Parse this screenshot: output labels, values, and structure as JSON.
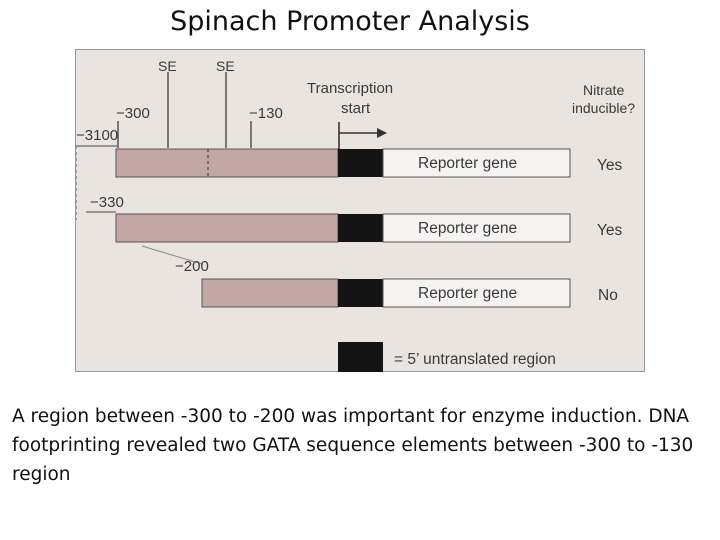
{
  "slide": {
    "title": "Spinach Promoter Analysis",
    "caption": "A region between -300 to -200 was important for enzyme induction. DNA footprinting revealed two GATA sequence elements between -300 to -130 region"
  },
  "diagram": {
    "se_labels": [
      "SE",
      "SE"
    ],
    "marker_labels": [
      "−300",
      "−130"
    ],
    "transcription_start": [
      "Transcription",
      "start"
    ],
    "nitrate_header": [
      "Nitrate",
      "inducible?"
    ],
    "constructs": [
      {
        "start_label": "−3100",
        "gene_label": "Reporter gene",
        "inducible": "Yes"
      },
      {
        "start_label": "−330",
        "gene_label": "Reporter gene",
        "inducible": "Yes"
      },
      {
        "start_label": "−200",
        "gene_label": "Reporter gene",
        "inducible": "No"
      }
    ],
    "legend_label": "= 5’ untranslated region",
    "colors": {
      "promoter": "#c3a7a4",
      "utr": "#141414",
      "gene": "#f5f3f2",
      "background": "#e9e4df"
    }
  }
}
